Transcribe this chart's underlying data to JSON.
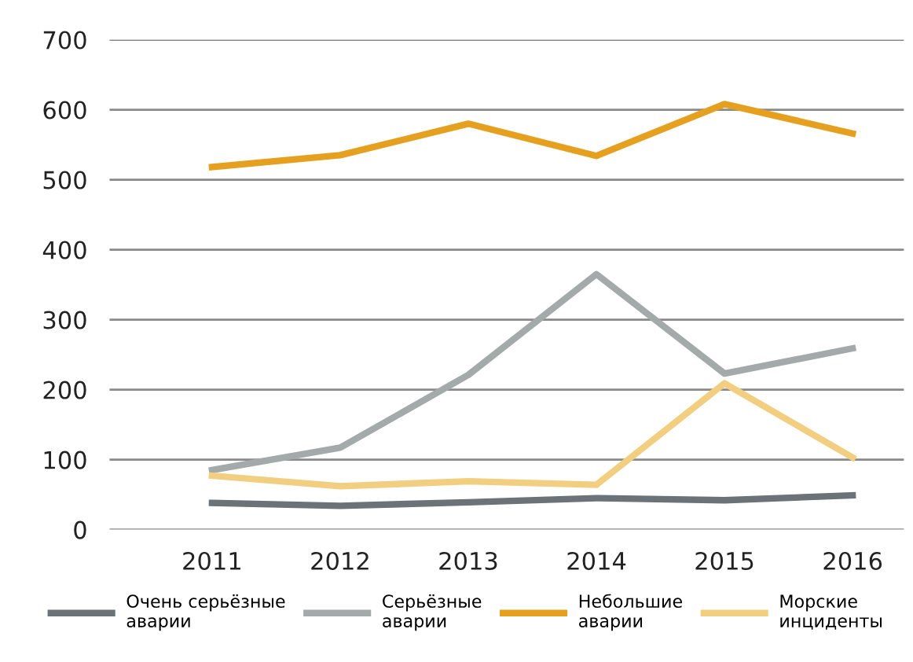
{
  "chart_data": {
    "type": "line",
    "categories": [
      "2011",
      "2012",
      "2013",
      "2014",
      "2015",
      "2016"
    ],
    "series": [
      {
        "name": "Очень серьёзные\nаварии",
        "color": "#6b7378",
        "values": [
          38,
          34,
          39,
          45,
          42,
          49
        ]
      },
      {
        "name": "Серьёзные\nаварии",
        "color": "#a3aaa9",
        "values": [
          85,
          117,
          221,
          365,
          223,
          259
        ]
      },
      {
        "name": "Небольшие\nаварии",
        "color": "#e6a020",
        "values": [
          518,
          535,
          580,
          534,
          608,
          566
        ]
      },
      {
        "name": "Морские\nинциденты",
        "color": "#f2cf80",
        "values": [
          77,
          62,
          69,
          64,
          209,
          103
        ]
      }
    ],
    "ylim": [
      0,
      700
    ],
    "yticks": [
      0,
      100,
      200,
      300,
      400,
      500,
      600,
      700
    ],
    "grid": "y",
    "legend": "bottom",
    "marker": "none",
    "line_style": "solid"
  }
}
